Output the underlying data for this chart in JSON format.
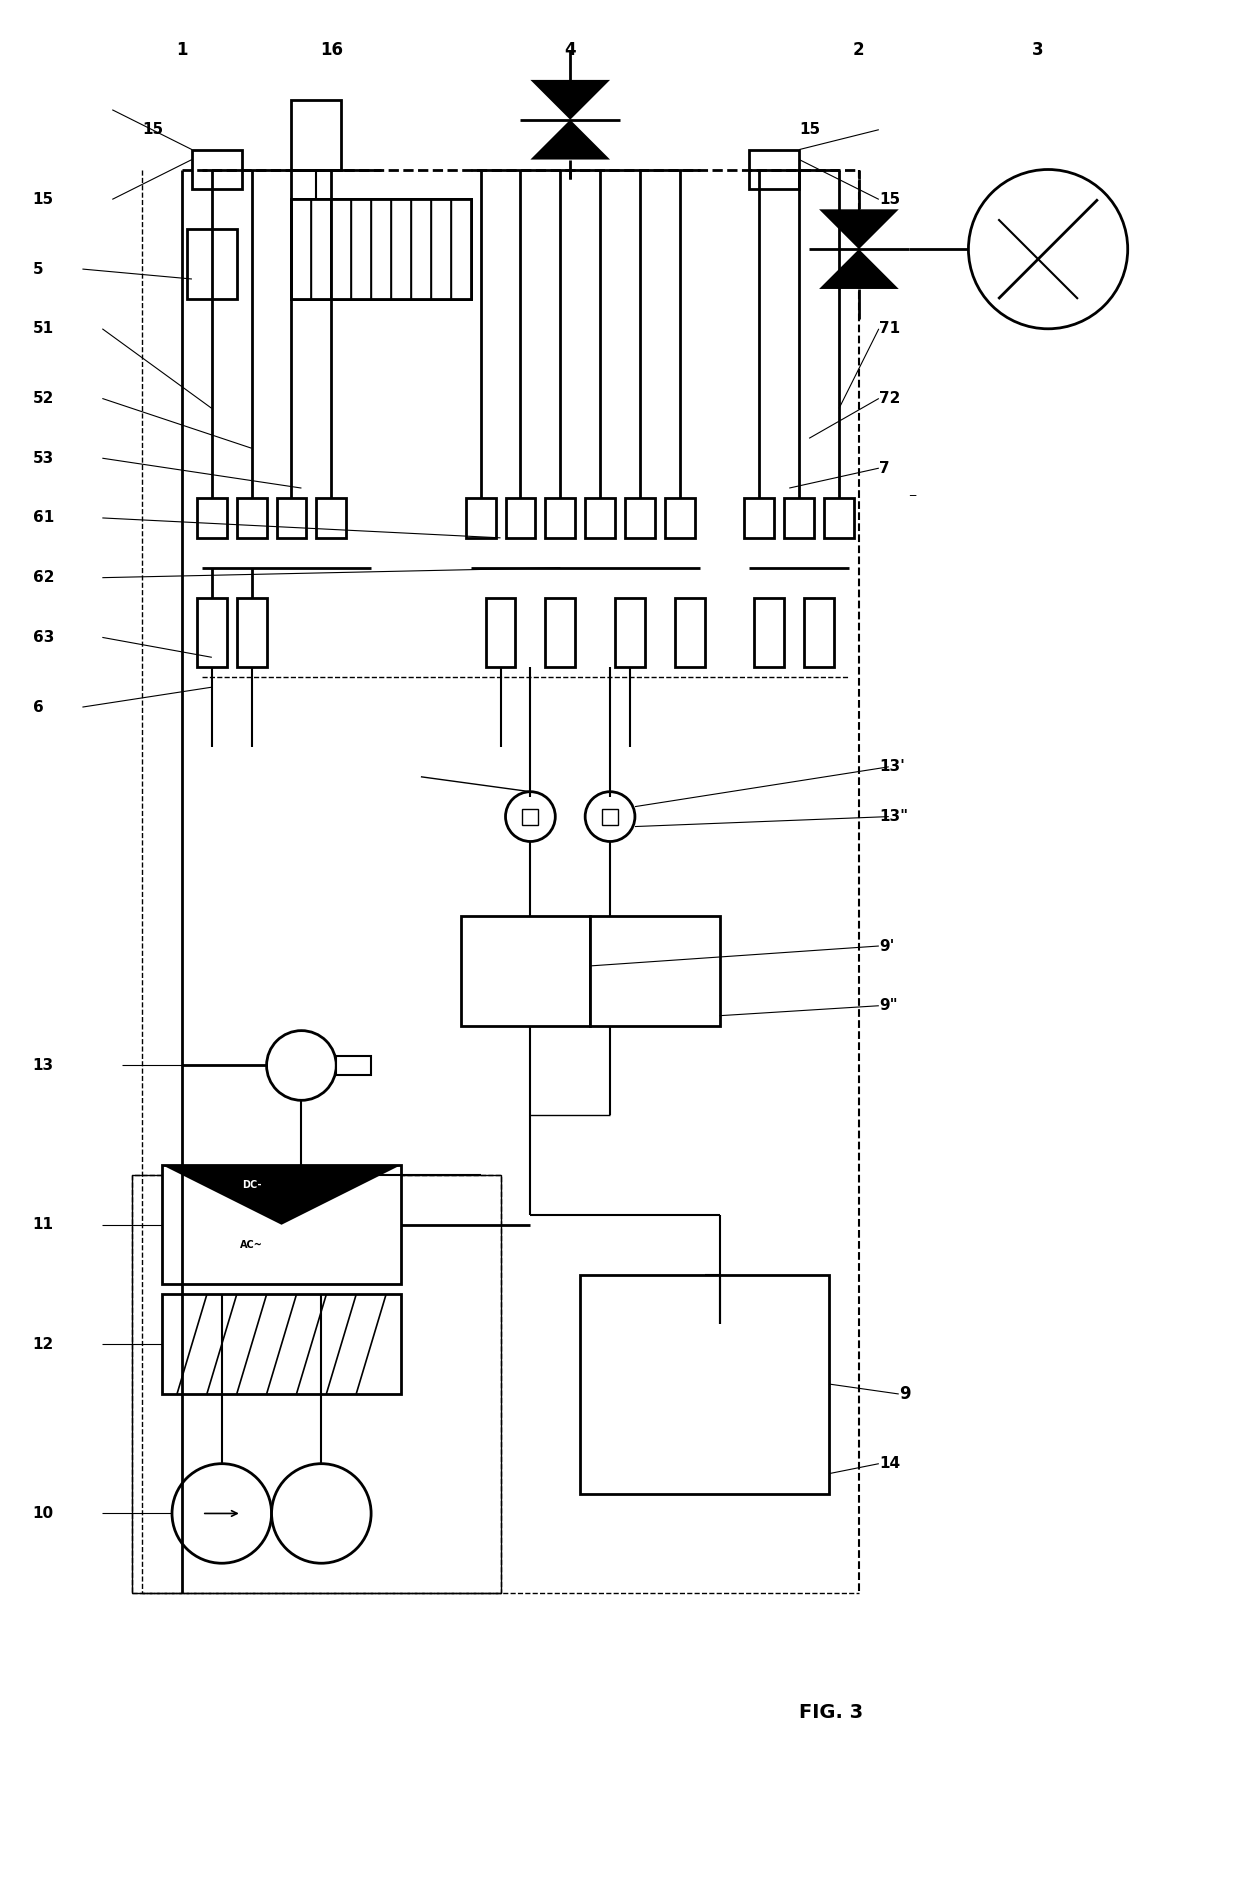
{
  "title": "FIG. 3",
  "bg_color": "#ffffff",
  "line_color": "#000000",
  "fig_width": 12.4,
  "fig_height": 18.96
}
